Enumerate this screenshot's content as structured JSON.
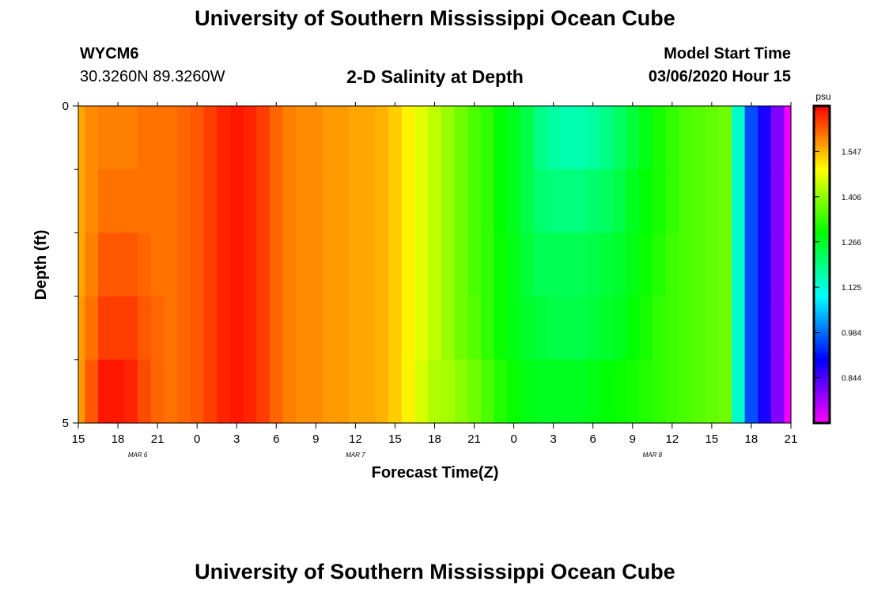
{
  "header": {
    "title_top": "University of Southern Mississippi Ocean Cube",
    "title_bottom": "University of Southern Mississippi Ocean Cube",
    "station_id": "WYCM6",
    "coordinates": "30.3260N 89.3260W",
    "model_start_label": "Model Start Time",
    "model_start_value": "03/06/2020 Hour 15"
  },
  "chart_data": {
    "type": "heatmap",
    "title": "2-D Salinity at Depth",
    "xlabel": "Forecast Time(Z)",
    "ylabel": "Depth (ft)",
    "x_start_hour": 15,
    "x_end_hour": 69,
    "x_tick_step_hours": 3,
    "x_tick_labels": [
      "15",
      "18",
      "21",
      "0",
      "3",
      "6",
      "9",
      "12",
      "15",
      "18",
      "21",
      "0",
      "3",
      "6",
      "9",
      "12",
      "15",
      "18",
      "21"
    ],
    "date_labels": [
      {
        "text": "MAR 6",
        "hour": 19.5
      },
      {
        "text": "MAR 7",
        "hour": 36
      },
      {
        "text": "MAR 8",
        "hour": 58.5
      }
    ],
    "y_range": [
      0,
      5
    ],
    "y_tick_labels": [
      "0",
      "5"
    ],
    "y_minor_ticks": [
      1,
      2,
      3,
      4
    ],
    "depth_levels": 5,
    "colorbar": {
      "unit": "psu",
      "tick_labels": [
        "1.547",
        "1.406",
        "1.266",
        "1.125",
        "0.984",
        "0.844"
      ],
      "tick_values": [
        1.547,
        1.406,
        1.266,
        1.125,
        0.984,
        0.844
      ],
      "min": 0.703,
      "max": 1.688,
      "colors": [
        "#ff00ff",
        "#8000ff",
        "#0000ff",
        "#0080ff",
        "#00ffff",
        "#00ff80",
        "#00ff00",
        "#80ff00",
        "#ffff00",
        "#ff8000",
        "#ff0000"
      ]
    },
    "time_hours": [
      15,
      16,
      17,
      18,
      19,
      20,
      21,
      22,
      23,
      24,
      25,
      26,
      27,
      28,
      29,
      30,
      31,
      32,
      33,
      34,
      35,
      36,
      37,
      38,
      39,
      40,
      41,
      42,
      43,
      44,
      45,
      46,
      47,
      48,
      49,
      50,
      51,
      52,
      53,
      54,
      55,
      56,
      57,
      58,
      59,
      60,
      61,
      62,
      63,
      64,
      65,
      66,
      67,
      68,
      69
    ],
    "salinity_by_depth": [
      [
        1.56,
        1.58,
        1.59,
        1.59,
        1.59,
        1.6,
        1.6,
        1.6,
        1.61,
        1.62,
        1.64,
        1.66,
        1.67,
        1.66,
        1.64,
        1.61,
        1.59,
        1.58,
        1.58,
        1.57,
        1.57,
        1.56,
        1.56,
        1.55,
        1.53,
        1.5,
        1.47,
        1.44,
        1.41,
        1.38,
        1.35,
        1.33,
        1.29,
        1.27,
        1.24,
        1.19,
        1.17,
        1.16,
        1.16,
        1.17,
        1.19,
        1.22,
        1.25,
        1.28,
        1.31,
        1.33,
        1.35,
        1.36,
        1.37,
        1.38,
        1.14,
        0.96,
        0.88,
        0.8,
        0.71
      ],
      [
        1.56,
        1.58,
        1.6,
        1.6,
        1.6,
        1.6,
        1.6,
        1.6,
        1.61,
        1.62,
        1.64,
        1.66,
        1.67,
        1.66,
        1.64,
        1.61,
        1.59,
        1.58,
        1.58,
        1.57,
        1.57,
        1.56,
        1.56,
        1.55,
        1.53,
        1.5,
        1.47,
        1.44,
        1.41,
        1.38,
        1.35,
        1.33,
        1.29,
        1.27,
        1.24,
        1.21,
        1.2,
        1.2,
        1.2,
        1.21,
        1.22,
        1.24,
        1.27,
        1.29,
        1.31,
        1.33,
        1.35,
        1.36,
        1.37,
        1.38,
        1.14,
        0.96,
        0.88,
        0.8,
        0.71
      ],
      [
        1.56,
        1.59,
        1.62,
        1.62,
        1.62,
        1.61,
        1.6,
        1.6,
        1.61,
        1.62,
        1.64,
        1.66,
        1.67,
        1.66,
        1.64,
        1.61,
        1.59,
        1.58,
        1.58,
        1.57,
        1.57,
        1.56,
        1.56,
        1.55,
        1.53,
        1.5,
        1.47,
        1.44,
        1.41,
        1.38,
        1.35,
        1.33,
        1.3,
        1.28,
        1.25,
        1.23,
        1.23,
        1.23,
        1.23,
        1.24,
        1.25,
        1.26,
        1.28,
        1.3,
        1.32,
        1.34,
        1.35,
        1.36,
        1.37,
        1.38,
        1.14,
        0.96,
        0.88,
        0.8,
        0.71
      ],
      [
        1.57,
        1.6,
        1.64,
        1.64,
        1.64,
        1.62,
        1.61,
        1.6,
        1.61,
        1.62,
        1.64,
        1.66,
        1.67,
        1.66,
        1.64,
        1.61,
        1.59,
        1.58,
        1.58,
        1.57,
        1.57,
        1.56,
        1.56,
        1.55,
        1.53,
        1.5,
        1.47,
        1.44,
        1.41,
        1.38,
        1.36,
        1.33,
        1.3,
        1.28,
        1.26,
        1.25,
        1.24,
        1.24,
        1.24,
        1.25,
        1.26,
        1.27,
        1.29,
        1.31,
        1.33,
        1.34,
        1.35,
        1.36,
        1.37,
        1.38,
        1.14,
        0.96,
        0.88,
        0.8,
        0.71
      ],
      [
        1.57,
        1.62,
        1.67,
        1.67,
        1.66,
        1.63,
        1.61,
        1.6,
        1.61,
        1.62,
        1.64,
        1.66,
        1.67,
        1.66,
        1.64,
        1.61,
        1.59,
        1.58,
        1.58,
        1.57,
        1.57,
        1.56,
        1.56,
        1.55,
        1.53,
        1.5,
        1.46,
        1.43,
        1.42,
        1.4,
        1.38,
        1.35,
        1.32,
        1.3,
        1.28,
        1.27,
        1.27,
        1.27,
        1.27,
        1.28,
        1.29,
        1.3,
        1.31,
        1.32,
        1.33,
        1.34,
        1.35,
        1.36,
        1.37,
        1.38,
        1.14,
        0.96,
        0.88,
        0.8,
        0.71
      ]
    ]
  }
}
